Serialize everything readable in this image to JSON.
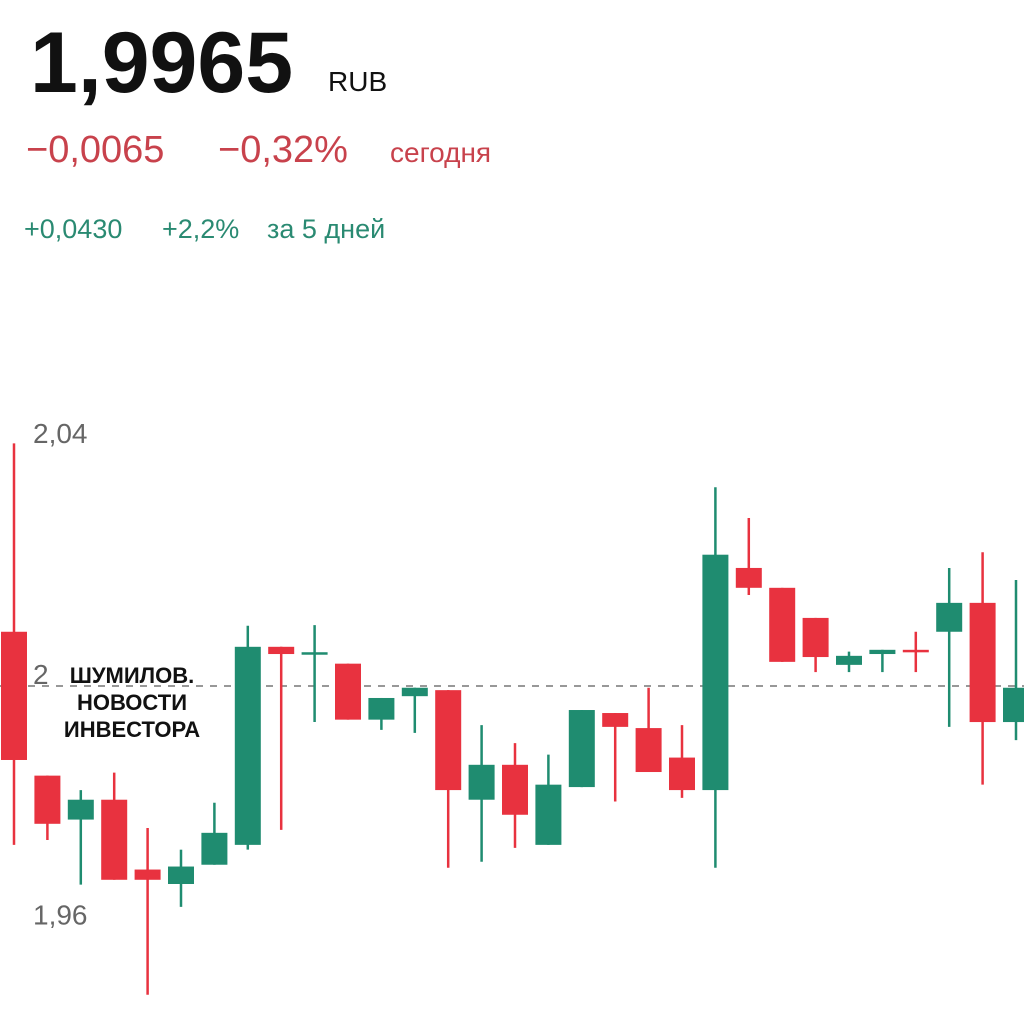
{
  "chart_data": {
    "type": "candlestick",
    "price": "1,9965",
    "currency": "RUB",
    "change_today": "−0,0065",
    "change_today_pct": "−0,32%",
    "today_label": "сегодня",
    "change_5d": "+0,0430",
    "change_5d_pct": "+2,2%",
    "period_label": "за 5 дней",
    "watermark": [
      "ШУМИЛОВ.",
      "НОВОСТИ",
      "ИНВЕСТОРА"
    ],
    "up_color": "#1f8c70",
    "down_color": "#e8323f",
    "ylim": [
      1.945,
      2.045
    ],
    "yticks": [
      {
        "value": 2.04,
        "label": "2,04"
      },
      2,
      {
        "value": 1.96,
        "label": "1,96"
      }
    ],
    "reference_line": 1.998,
    "categories": [
      null,
      null,
      null,
      null,
      null,
      null,
      null,
      null,
      null,
      null,
      null,
      null,
      null,
      null,
      null,
      null,
      null,
      null,
      null,
      null,
      null,
      null,
      null,
      null,
      null,
      null,
      null,
      null,
      null,
      null,
      null
    ],
    "open": [
      2.007,
      1.9831,
      1.9758,
      1.9791,
      1.9675,
      1.9651,
      1.9683,
      1.9716,
      2.0045,
      2.0033,
      2.0017,
      1.9924,
      1.9963,
      1.9973,
      1.9791,
      1.9849,
      1.9716,
      1.9812,
      1.9935,
      1.991,
      1.9861,
      1.9807,
      2.0176,
      2.0143,
      2.0093,
      2.0015,
      2.0033,
      2.004,
      2.007,
      2.0118,
      1.992
    ],
    "high": [
      2.0383,
      1.9831,
      1.9807,
      1.9836,
      1.9744,
      1.9708,
      1.9786,
      2.008,
      2.0045,
      2.0081,
      2.0017,
      1.996,
      1.9977,
      1.9973,
      1.9915,
      1.9885,
      1.9866,
      1.994,
      1.9935,
      1.9977,
      1.9915,
      2.031,
      2.0259,
      2.0143,
      2.0093,
      2.0037,
      2.004,
      2.007,
      2.0176,
      2.0202,
      2.0156
    ],
    "low": [
      1.9716,
      1.9724,
      1.965,
      1.9658,
      1.9467,
      1.9613,
      1.9683,
      1.9708,
      1.9741,
      1.992,
      1.9924,
      1.9907,
      1.9902,
      1.9678,
      1.9688,
      1.9711,
      1.9716,
      1.9812,
      1.9788,
      1.9837,
      1.9794,
      1.9678,
      2.0131,
      2.002,
      2.0003,
      2.0003,
      2.0003,
      2.0003,
      1.9912,
      1.9816,
      1.989
    ],
    "close": [
      1.9857,
      1.9751,
      1.9791,
      1.9658,
      1.9658,
      1.968,
      1.9736,
      2.0045,
      2.0033,
      2.0036,
      1.9924,
      1.996,
      1.9977,
      1.9807,
      1.9849,
      1.9766,
      1.9816,
      1.994,
      1.9912,
      1.9837,
      1.9807,
      2.0198,
      2.0143,
      2.002,
      2.0028,
      2.003,
      2.004,
      2.0038,
      2.0118,
      1.992,
      1.9977
    ]
  }
}
